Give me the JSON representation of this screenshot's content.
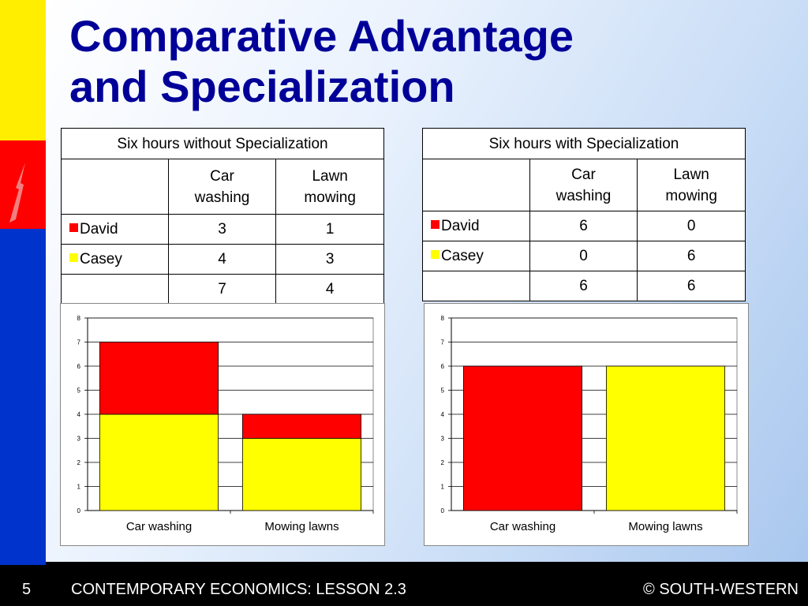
{
  "title": {
    "line1": "Comparative Advantage",
    "line2": "and Specialization"
  },
  "colors": {
    "david": "#ff0000",
    "casey": "#ffff00",
    "title": "#000099",
    "footer_bg": "#000000"
  },
  "table_without": {
    "caption": "Six hours without Specialization",
    "col1_line1": "Car",
    "col1_line2": "washing",
    "col2_line1": "Lawn",
    "col2_line2": "mowing",
    "rows": [
      {
        "name": "David",
        "car": "3",
        "lawn": "1"
      },
      {
        "name": "Casey",
        "car": "4",
        "lawn": "3"
      },
      {
        "name": "",
        "car": "7",
        "lawn": "4"
      }
    ]
  },
  "table_with": {
    "caption": "Six hours with Specialization",
    "col1_line1": "Car",
    "col1_line2": "washing",
    "col2_line1": "Lawn",
    "col2_line2": "mowing",
    "rows": [
      {
        "name": "David",
        "car": "6",
        "lawn": "0"
      },
      {
        "name": "Casey",
        "car": "0",
        "lawn": "6"
      },
      {
        "name": "",
        "car": "6",
        "lawn": "6"
      }
    ]
  },
  "chart_data": [
    {
      "type": "bar",
      "stacked": true,
      "categories": [
        "Car washing",
        "Mowing lawns"
      ],
      "series": [
        {
          "values": [
            4,
            3
          ],
          "color": "#ffff00"
        },
        {
          "values": [
            3,
            1
          ],
          "color": "#ff0000"
        }
      ],
      "ylim": [
        0,
        8
      ],
      "yticks": [
        0,
        1,
        2,
        3,
        4,
        5,
        6,
        7,
        8
      ],
      "grid": true,
      "legend": "none"
    },
    {
      "type": "bar",
      "stacked": true,
      "categories": [
        "Car washing",
        "Mowing lawns"
      ],
      "series": [
        {
          "values": [
            0,
            6
          ],
          "color": "#ffff00"
        },
        {
          "values": [
            6,
            0
          ],
          "color": "#ff0000"
        }
      ],
      "ylim": [
        0,
        8
      ],
      "yticks": [
        0,
        1,
        2,
        3,
        4,
        5,
        6,
        7,
        8
      ],
      "grid": true,
      "legend": "none"
    }
  ],
  "footer": {
    "slide_number": "5",
    "course": "CONTEMPORARY ECONOMICS: LESSON 2.3",
    "copyright": "© SOUTH-WESTERN"
  }
}
